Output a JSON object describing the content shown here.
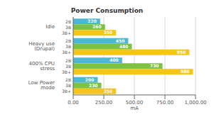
{
  "chart_data": {
    "type": "bar",
    "title": "Power Consumption",
    "x_label": "mA",
    "orientation": "horizontal",
    "categories": [
      "Idle",
      "Heavy use (Drupal)",
      "400% CPU stress",
      "Low Power mode"
    ],
    "series": [
      {
        "name": "2B",
        "color": "#4db8d6",
        "values": [
          220,
          450,
          400,
          200
        ]
      },
      {
        "name": "3B",
        "color": "#7dc243",
        "values": [
          260,
          480,
          730,
          230
        ]
      },
      {
        "name": "3B+",
        "color": "#f5c518",
        "values": [
          350,
          950,
          980,
          350
        ]
      }
    ],
    "xlim": [
      0,
      1000
    ],
    "xticks": [
      {
        "value": 0,
        "label": "0.00"
      },
      {
        "value": 250,
        "label": "250.00"
      },
      {
        "value": 500,
        "label": "500.00"
      },
      {
        "value": 750,
        "label": "750.00"
      },
      {
        "value": 1000,
        "label": "1,000.00"
      }
    ],
    "grid": true,
    "data_labels": true
  }
}
